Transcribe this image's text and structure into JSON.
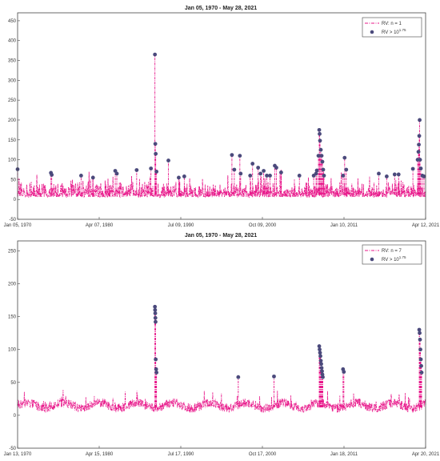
{
  "charts": [
    {
      "title": "Jan 05, 1970 - May 28, 2021",
      "ylim": [
        -50,
        470
      ],
      "yticks": [
        "-50",
        "0",
        "50",
        "100",
        "150",
        "200",
        "250",
        "300",
        "350",
        "400",
        "450"
      ],
      "xticks": [
        "Jan 05, 1970",
        "Apr 07, 1980",
        "Jul 09, 1990",
        "Oct 09, 2000",
        "Jan 10, 2011",
        "Apr 12, 2021"
      ],
      "legend": {
        "line_label": "RV: n = 1",
        "dot_label_base": "RV > 10",
        "dot_label_exp": "1.75"
      }
    },
    {
      "title": "Jan 05, 1970 - May 28, 2021",
      "ylim": [
        -50,
        265
      ],
      "yticks": [
        "-50",
        "0",
        "50",
        "100",
        "150",
        "200",
        "250"
      ],
      "xticks": [
        "Jan 13, 1970",
        "Apr 15, 1980",
        "Jul 17, 1990",
        "Oct 17, 2000",
        "Jan 18, 2011",
        "Apr 20, 2021"
      ],
      "legend": {
        "line_label": "RV: n = 7",
        "dot_label_base": "RV > 10",
        "dot_label_exp": "1.75"
      }
    }
  ],
  "colors": {
    "line": "#e8178a",
    "dot": "#4b4a7c",
    "axis": "#444444"
  },
  "chart_data": [
    {
      "type": "line",
      "title": "Jan 05, 1970 - May 28, 2021",
      "x_range": [
        "1970-01-05",
        "2021-05-28"
      ],
      "ylim": [
        -50,
        470
      ],
      "series": [
        {
          "name": "RV: n = 1",
          "style": "dash-dot",
          "baseline": 12
        },
        {
          "name": "RV > 10^1.75",
          "style": "markers",
          "points": [
            [
              1970.0,
              76
            ],
            [
              1974.2,
              67
            ],
            [
              1974.3,
              62
            ],
            [
              1978.0,
              60
            ],
            [
              1979.5,
              55
            ],
            [
              1982.3,
              72
            ],
            [
              1982.5,
              65
            ],
            [
              1985.0,
              74
            ],
            [
              1986.8,
              78
            ],
            [
              1987.3,
              365
            ],
            [
              1987.35,
              140
            ],
            [
              1987.4,
              115
            ],
            [
              1987.5,
              70
            ],
            [
              1989.0,
              98
            ],
            [
              1990.3,
              55
            ],
            [
              1991.0,
              58
            ],
            [
              1997.0,
              112
            ],
            [
              1997.3,
              75
            ],
            [
              1998.0,
              110
            ],
            [
              1998.1,
              65
            ],
            [
              1999.3,
              60
            ],
            [
              1999.6,
              90
            ],
            [
              2000.3,
              80
            ],
            [
              2000.6,
              65
            ],
            [
              2001.0,
              72
            ],
            [
              2001.4,
              60
            ],
            [
              2001.8,
              60
            ],
            [
              2002.4,
              85
            ],
            [
              2002.6,
              80
            ],
            [
              2003.2,
              68
            ],
            [
              2005.5,
              60
            ],
            [
              2007.3,
              60
            ],
            [
              2007.6,
              65
            ],
            [
              2007.7,
              73
            ],
            [
              2007.9,
              110
            ],
            [
              2008.0,
              175
            ],
            [
              2008.05,
              165
            ],
            [
              2008.1,
              148
            ],
            [
              2008.2,
              125
            ],
            [
              2008.3,
              110
            ],
            [
              2008.4,
              95
            ],
            [
              2008.5,
              75
            ],
            [
              2008.6,
              60
            ],
            [
              2011.0,
              60
            ],
            [
              2011.2,
              105
            ],
            [
              2011.4,
              75
            ],
            [
              2015.5,
              65
            ],
            [
              2016.5,
              58
            ],
            [
              2017.5,
              63
            ],
            [
              2018.0,
              63
            ],
            [
              2019.8,
              77
            ],
            [
              2020.4,
              100
            ],
            [
              2020.5,
              120
            ],
            [
              2020.55,
              138
            ],
            [
              2020.6,
              160
            ],
            [
              2020.65,
              200
            ],
            [
              2020.7,
              100
            ],
            [
              2020.8,
              78
            ],
            [
              2021.0,
              60
            ],
            [
              2021.2,
              58
            ]
          ]
        }
      ]
    },
    {
      "type": "line",
      "title": "Jan 05, 1970 - May 28, 2021",
      "x_range": [
        "1970-01-13",
        "2021-05-28"
      ],
      "ylim": [
        -50,
        265
      ],
      "series": [
        {
          "name": "RV: n = 7",
          "style": "dash-dot",
          "baseline": 12
        },
        {
          "name": "RV > 10^1.75",
          "style": "markers",
          "points": [
            [
              1987.3,
              165
            ],
            [
              1987.32,
              160
            ],
            [
              1987.34,
              155
            ],
            [
              1987.36,
              148
            ],
            [
              1987.38,
              142
            ],
            [
              1987.4,
              85
            ],
            [
              1987.45,
              70
            ],
            [
              1987.5,
              65
            ],
            [
              1997.8,
              58
            ],
            [
              2002.3,
              59
            ],
            [
              2008.0,
              105
            ],
            [
              2008.05,
              100
            ],
            [
              2008.1,
              95
            ],
            [
              2008.15,
              90
            ],
            [
              2008.2,
              83
            ],
            [
              2008.25,
              78
            ],
            [
              2008.3,
              72
            ],
            [
              2008.35,
              67
            ],
            [
              2008.4,
              62
            ],
            [
              2008.45,
              58
            ],
            [
              2011.0,
              70
            ],
            [
              2011.1,
              66
            ],
            [
              2020.6,
              130
            ],
            [
              2020.65,
              125
            ],
            [
              2020.7,
              115
            ],
            [
              2020.75,
              100
            ],
            [
              2020.8,
              85
            ],
            [
              2020.85,
              75
            ],
            [
              2020.9,
              65
            ]
          ]
        }
      ]
    }
  ]
}
